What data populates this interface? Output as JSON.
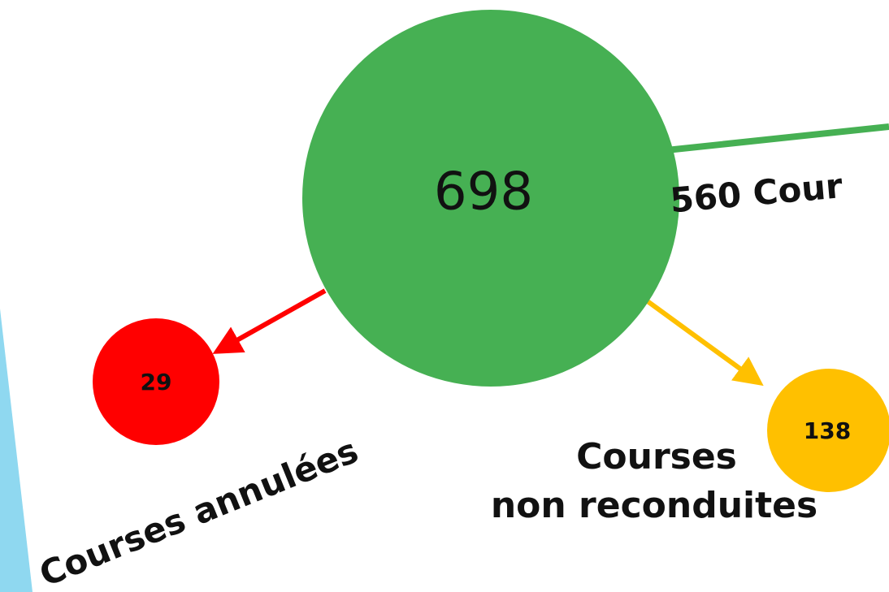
{
  "nodes": [
    {
      "label": 698
    },
    {
      "label": 29
    },
    {
      "label": 138
    }
  ],
  "edges": [
    {
      "label": "560 Cour"
    },
    {
      "label": "Courses annulées"
    },
    {
      "label": [
        "Courses",
        "non reconduites"
      ]
    }
  ]
}
